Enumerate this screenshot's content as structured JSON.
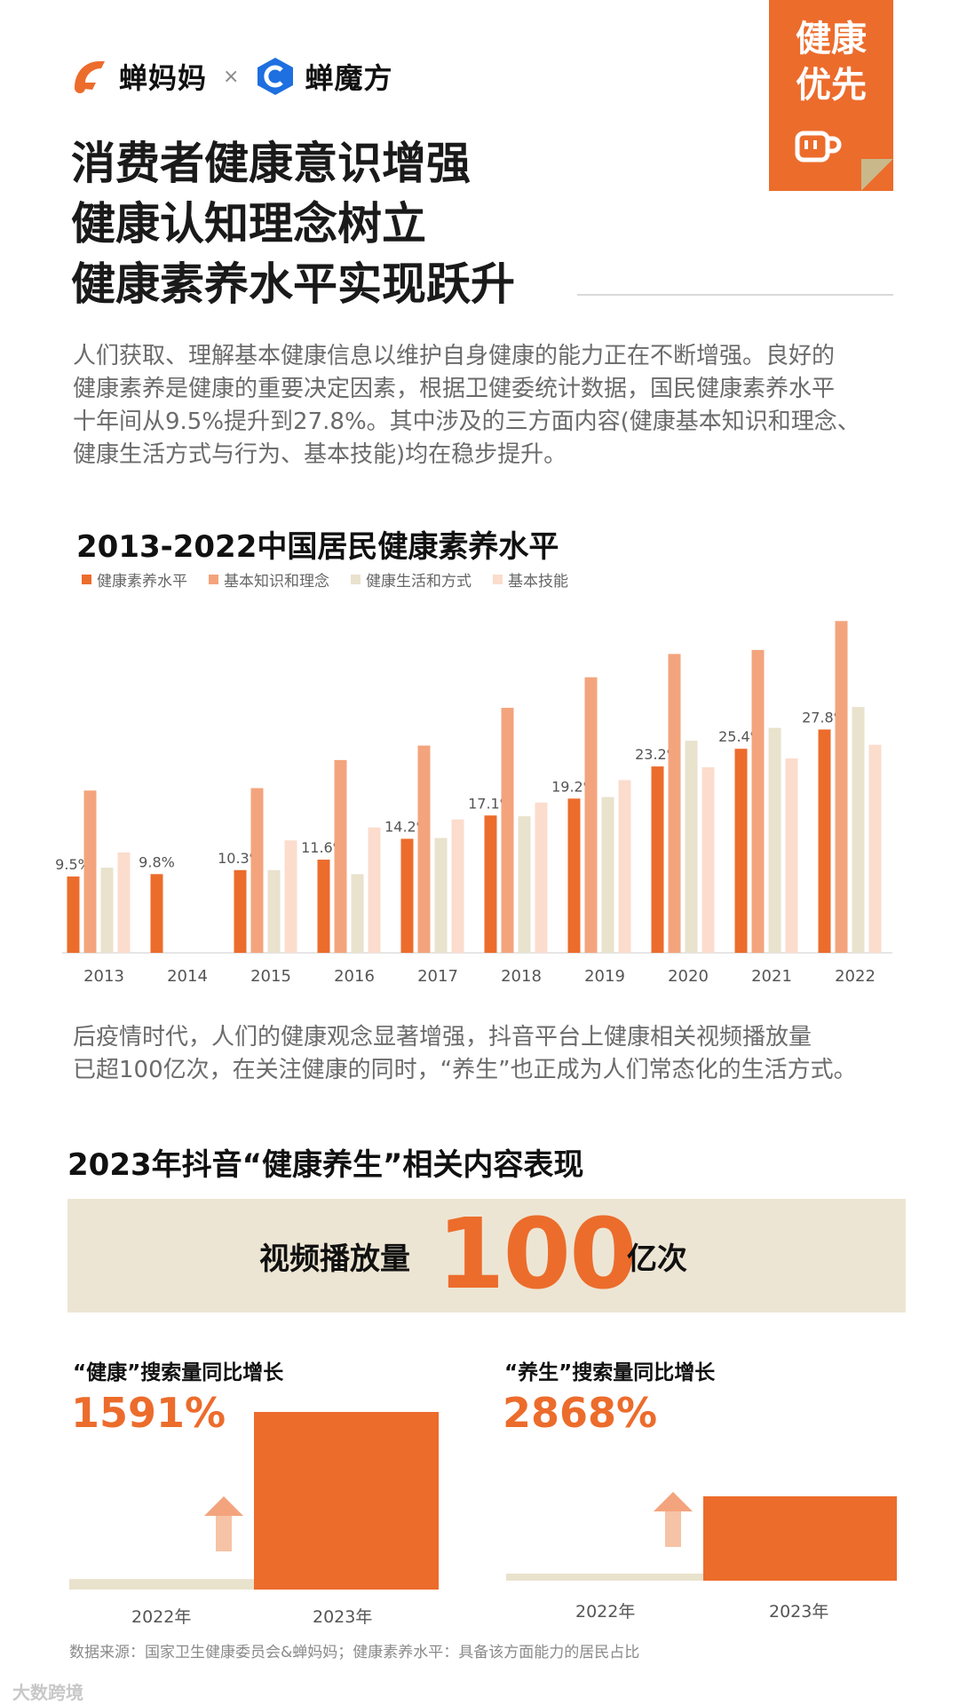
{
  "header": {
    "brand1": "蝉妈妈",
    "times": "×",
    "brand2": "蝉魔方",
    "badge_line1": "健康",
    "badge_line2": "优先"
  },
  "headline": {
    "line1": "消费者健康意识增强",
    "line2": "健康认知理念树立",
    "line3": "健康素养水平实现跃升"
  },
  "intro": {
    "line1": "人们获取、理解基本健康信息以维护自身健康的能力正在不断增强。良好的",
    "line2": "健康素养是健康的重要决定因素，根据卫健委统计数据，国民健康素养水平",
    "line3": "十年间从9.5%提升到27.8%。其中涉及的三方面内容(健康基本知识和理念、",
    "line4": "健康生活方式与行为、基本技能)均在稳步提升。"
  },
  "colors": {
    "accent": "#ec6c2c",
    "series": [
      "#ec6c2c",
      "#f3a47d",
      "#e9e2cd",
      "#fbdccd"
    ],
    "banner_bg": "#ede5d3"
  },
  "chart_data": [
    {
      "type": "bar",
      "title": "2013-2022中国居民健康素养水平",
      "categories": [
        "2013",
        "2014",
        "2015",
        "2016",
        "2017",
        "2018",
        "2019",
        "2020",
        "2021",
        "2022"
      ],
      "series": [
        {
          "name": "健康素养水平",
          "values": [
            9.5,
            9.8,
            10.3,
            11.6,
            14.2,
            17.1,
            19.2,
            23.2,
            25.4,
            27.8
          ]
        },
        {
          "name": "基本知识和理念",
          "values": [
            20.2,
            null,
            20.5,
            24.0,
            25.8,
            30.5,
            34.3,
            37.2,
            37.7,
            41.3
          ]
        },
        {
          "name": "健康生活和方式",
          "values": [
            10.6,
            null,
            10.3,
            9.8,
            14.3,
            17.0,
            19.4,
            26.4,
            28.0,
            30.6
          ]
        },
        {
          "name": "基本技能",
          "values": [
            12.5,
            null,
            14.0,
            15.6,
            16.6,
            18.7,
            21.5,
            23.1,
            24.2,
            25.9
          ]
        }
      ],
      "data_labels": [
        "9.5%",
        "9.8%",
        "10.3%",
        "11.6%",
        "14.2%",
        "17.1%",
        "19.2%",
        "23.2%",
        "25.4%",
        "27.8%"
      ],
      "ylim": [
        0,
        42
      ],
      "legend_position": "top-left",
      "grid": false
    },
    {
      "type": "bar",
      "title": "“健康”搜索量同比增长",
      "categories": [
        "2022年",
        "2023年"
      ],
      "values": [
        1,
        16.91
      ],
      "annotation": "1591%"
    },
    {
      "type": "bar",
      "title": "“养生”搜索量同比增长",
      "categories": [
        "2022年",
        "2023年"
      ],
      "values": [
        1,
        29.68
      ],
      "annotation": "2868%"
    }
  ],
  "mid_text": {
    "line1": "后疫情时代，人们的健康观念显著增强，抖音平台上健康相关视频播放量",
    "line2": "已超100亿次，在关注健康的同时，“养生”也正成为人们常态化的生活方式。"
  },
  "section2": {
    "title": "2023年抖音“健康养生”相关内容表现",
    "banner_label": "视频播放量",
    "banner_value": "100",
    "banner_unit": "亿次"
  },
  "source": "数据来源：国家卫生健康委员会&蝉妈妈；健康素养水平：具备该方面能力的居民占比",
  "watermark": "大数跨境"
}
